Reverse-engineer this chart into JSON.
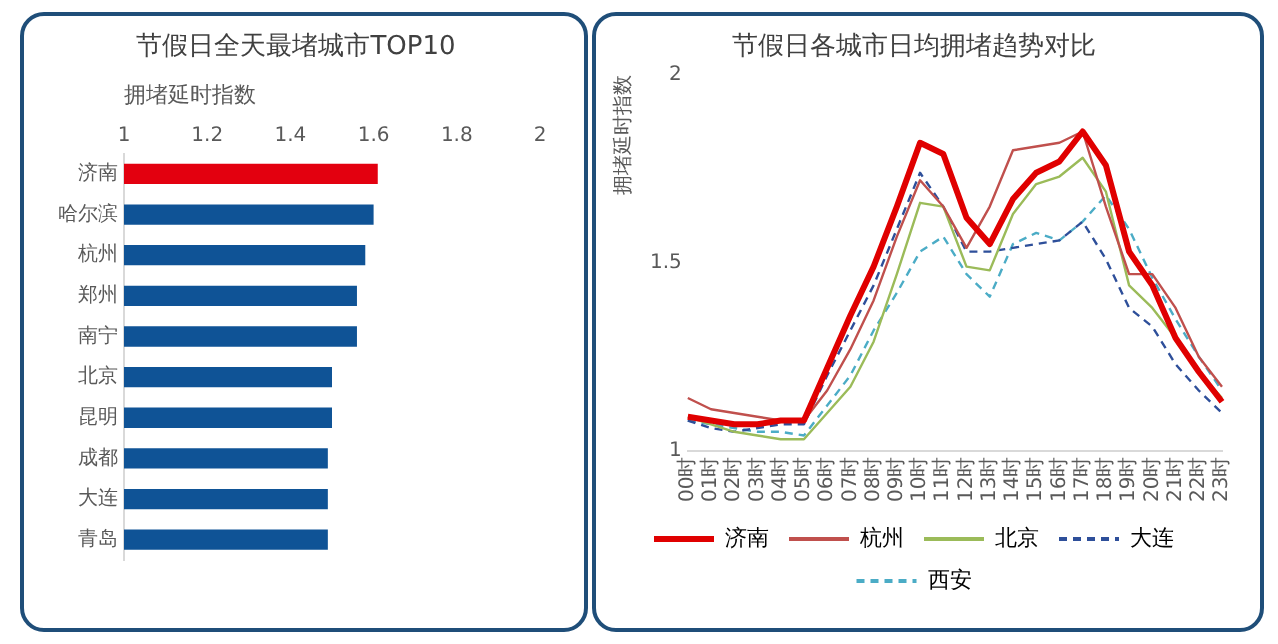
{
  "chart_data": [
    {
      "type": "bar",
      "orientation": "horizontal",
      "title": "节假日全天最堵城市TOP10",
      "xlabel": "拥堵延时指数",
      "categories": [
        "济南",
        "哈尔滨",
        "杭州",
        "郑州",
        "南宁",
        "北京",
        "昆明",
        "成都",
        "大连",
        "青岛"
      ],
      "values": [
        1.61,
        1.6,
        1.58,
        1.56,
        1.56,
        1.5,
        1.5,
        1.49,
        1.49,
        1.49
      ],
      "colors": [
        "#e3000f",
        "#0f5396",
        "#0f5396",
        "#0f5396",
        "#0f5396",
        "#0f5396",
        "#0f5396",
        "#0f5396",
        "#0f5396",
        "#0f5396"
      ],
      "xlim": [
        1,
        2
      ],
      "xticks": [
        1,
        1.2,
        1.4,
        1.6,
        1.8,
        2
      ],
      "grid": false,
      "legend": false
    },
    {
      "type": "line",
      "title": "节假日各城市日均拥堵趋势对比",
      "ylabel": "拥堵延时指数",
      "categories": [
        "00时",
        "01时",
        "02时",
        "03时",
        "04时",
        "05时",
        "06时",
        "07时",
        "08时",
        "09时",
        "10时",
        "11时",
        "12时",
        "13时",
        "14时",
        "15时",
        "16时",
        "17时",
        "18时",
        "19时",
        "20时",
        "21时",
        "22时",
        "23时"
      ],
      "series": [
        {
          "name": "济南",
          "color": "#e00000",
          "line_style": "solid",
          "values": [
            1.09,
            1.08,
            1.07,
            1.07,
            1.08,
            1.08,
            1.22,
            1.36,
            1.49,
            1.65,
            1.82,
            1.79,
            1.62,
            1.55,
            1.67,
            1.74,
            1.77,
            1.85,
            1.76,
            1.53,
            1.44,
            1.3,
            1.21,
            1.13
          ]
        },
        {
          "name": "杭州",
          "color": "#c0504d",
          "line_style": "solid",
          "values": [
            1.14,
            1.11,
            1.1,
            1.09,
            1.08,
            1.08,
            1.16,
            1.27,
            1.4,
            1.57,
            1.72,
            1.65,
            1.54,
            1.65,
            1.8,
            1.81,
            1.82,
            1.85,
            1.65,
            1.47,
            1.47,
            1.38,
            1.25,
            1.17
          ]
        },
        {
          "name": "北京",
          "color": "#9bbb59",
          "line_style": "solid",
          "values": [
            1.09,
            1.07,
            1.05,
            1.04,
            1.03,
            1.03,
            1.1,
            1.17,
            1.29,
            1.47,
            1.66,
            1.65,
            1.49,
            1.48,
            1.63,
            1.71,
            1.73,
            1.78,
            1.69,
            1.44,
            1.38,
            1.3,
            1.21,
            1.14
          ]
        },
        {
          "name": "大连",
          "color": "#2e4f9a",
          "line_style": "dashed",
          "values": [
            1.08,
            1.06,
            1.05,
            1.06,
            1.07,
            1.07,
            1.2,
            1.32,
            1.44,
            1.59,
            1.74,
            1.65,
            1.53,
            1.53,
            1.54,
            1.55,
            1.56,
            1.61,
            1.51,
            1.38,
            1.33,
            1.23,
            1.16,
            1.1
          ]
        },
        {
          "name": "西安",
          "color": "#4bacc6",
          "line_style": "dashed",
          "values": [
            1.08,
            1.07,
            1.06,
            1.05,
            1.05,
            1.04,
            1.12,
            1.2,
            1.32,
            1.42,
            1.53,
            1.57,
            1.47,
            1.41,
            1.55,
            1.58,
            1.56,
            1.61,
            1.68,
            1.59,
            1.46,
            1.35,
            1.25,
            1.16
          ]
        }
      ],
      "ylim": [
        1,
        2
      ],
      "yticks": [
        1,
        1.5,
        2
      ],
      "grid": false,
      "legend": "bottom",
      "marker": "none"
    }
  ]
}
